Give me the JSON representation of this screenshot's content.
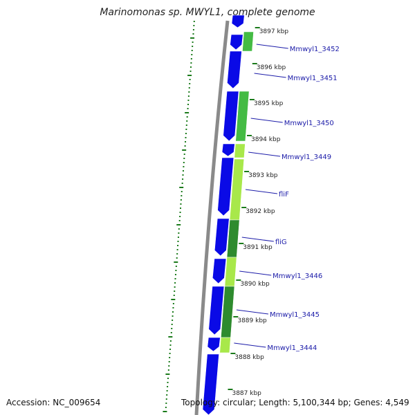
{
  "title": "Marinomonas sp. MWYL1, complete genome",
  "accession": "Accession: NC_009654",
  "summary": "Topology: circular; Length: 5,100,344 bp; Genes: 4,549",
  "colors": {
    "forward_cds": "#0a0ae6",
    "backbone": "#8a8a8a",
    "label": "#1a1aa8",
    "gc_plot": "#1a7a1a",
    "homology_dark": "#2e8b2e",
    "homology_mid": "#44bb44",
    "homology_light": "#a8e84a"
  },
  "kbp_ticks": [
    "3897 kbp",
    "3896 kbp",
    "3895 kbp",
    "3894 kbp",
    "3893 kbp",
    "3892 kbp",
    "3891 kbp",
    "3890 kbp",
    "3889 kbp",
    "3888 kbp",
    "3887 kbp"
  ],
  "gene_labels": [
    "Mmwyl1_3452",
    "Mmwyl1_3451",
    "Mmwyl1_3450",
    "Mmwyl1_3449",
    "fliF",
    "fliG",
    "Mmwyl1_3446",
    "Mmwyl1_3445",
    "Mmwyl1_3444"
  ]
}
